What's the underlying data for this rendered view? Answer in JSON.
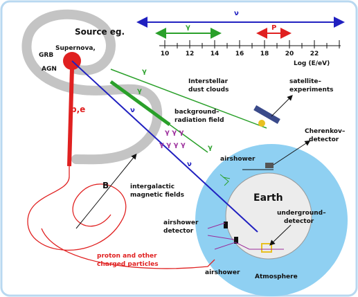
{
  "source": {
    "title": "Source eg.",
    "supernova": "Supernova,",
    "grb": "GRB",
    "agn": "AGN",
    "particles": "p,e"
  },
  "energy_axis": {
    "nu": "ν",
    "gamma": "γ",
    "proton": "P",
    "ticks": [
      "10",
      "12",
      "14",
      "16",
      "18",
      "20",
      "22"
    ],
    "label": "Log (E/eV)"
  },
  "paths": {
    "gamma_dust": "γ",
    "gamma_mid": "γ",
    "nu_mid": "ν",
    "gammas_top": "γ γ γ",
    "gammas_bottom": "γ γ γ γ",
    "gamma_low": "γ",
    "nu_low": "ν",
    "b_field": "B"
  },
  "labels": {
    "dust": [
      "Interstellar",
      "dust clouds"
    ],
    "satellite": [
      "satellite–",
      "experiments"
    ],
    "background": [
      "background–",
      "radiation field"
    ],
    "cherenkov": [
      "Cherenkov–",
      "detector"
    ],
    "airshower_top": "airshower",
    "magnetic": [
      "intergalactic",
      "magnetic fields"
    ],
    "earth": "Earth",
    "underground": [
      "underground–",
      "detector"
    ],
    "airshower_detector": [
      "airshower",
      "detector"
    ],
    "charged": [
      "proton and other",
      "charged particles"
    ],
    "airshower_bottom": "airshower",
    "atmosphere": "Atmosphere"
  }
}
